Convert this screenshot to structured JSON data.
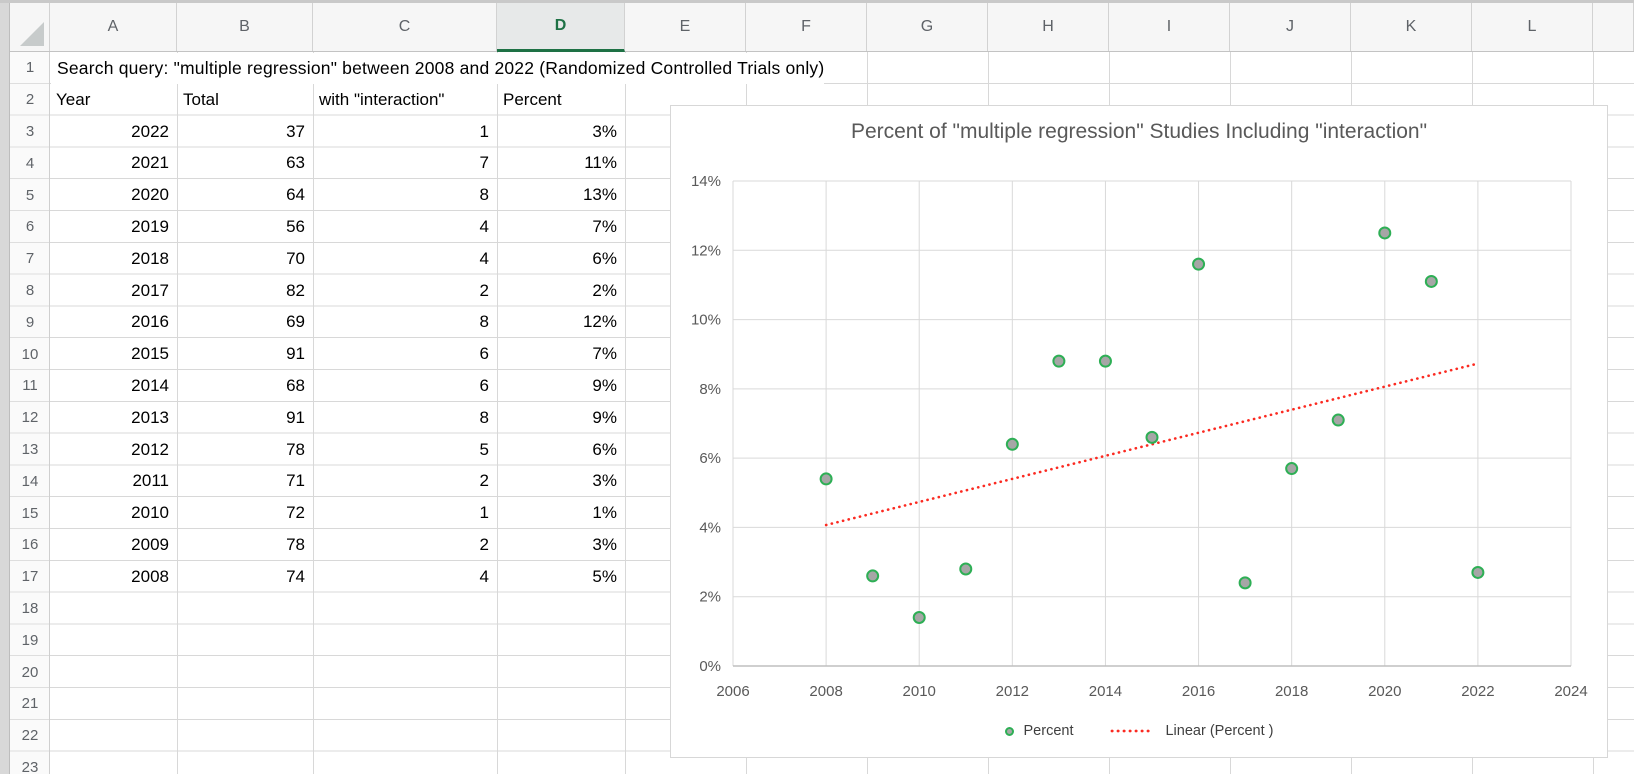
{
  "app": {
    "selected_column": "D"
  },
  "sheet": {
    "column_headers": [
      "A",
      "B",
      "C",
      "D",
      "E",
      "F",
      "G",
      "H",
      "I",
      "J",
      "K",
      "L"
    ],
    "row_count": 23,
    "title_cell": "Search query: \"multiple regression\" between 2008 and 2022 (Randomized Controlled Trials only)",
    "table": {
      "header_row": [
        "Year",
        "Total",
        "with \"interaction\"",
        "Percent"
      ],
      "rows": [
        [
          "2022",
          "37",
          "1",
          "3%"
        ],
        [
          "2021",
          "63",
          "7",
          "11%"
        ],
        [
          "2020",
          "64",
          "8",
          "13%"
        ],
        [
          "2019",
          "56",
          "4",
          "7%"
        ],
        [
          "2018",
          "70",
          "4",
          "6%"
        ],
        [
          "2017",
          "82",
          "2",
          "2%"
        ],
        [
          "2016",
          "69",
          "8",
          "12%"
        ],
        [
          "2015",
          "91",
          "6",
          "7%"
        ],
        [
          "2014",
          "68",
          "6",
          "9%"
        ],
        [
          "2013",
          "91",
          "8",
          "9%"
        ],
        [
          "2012",
          "78",
          "5",
          "6%"
        ],
        [
          "2011",
          "71",
          "2",
          "3%"
        ],
        [
          "2010",
          "72",
          "1",
          "1%"
        ],
        [
          "2009",
          "78",
          "2",
          "3%"
        ],
        [
          "2008",
          "74",
          "4",
          "5%"
        ]
      ]
    }
  },
  "chart_data": {
    "type": "scatter",
    "title": "Percent of \"multiple regression\" Studies Including \"interaction\"",
    "x": [
      2008,
      2009,
      2010,
      2011,
      2012,
      2013,
      2014,
      2015,
      2016,
      2017,
      2018,
      2019,
      2020,
      2021,
      2022
    ],
    "series": [
      {
        "name": "Percent",
        "values": [
          5.4,
          2.6,
          1.4,
          2.8,
          6.4,
          8.8,
          8.8,
          6.6,
          11.6,
          2.4,
          5.7,
          7.1,
          12.5,
          11.1,
          2.7
        ]
      }
    ],
    "trendline": {
      "name": "Linear (Percent )",
      "x1": 2008,
      "y1": 4.07,
      "x2": 2022,
      "y2": 8.73,
      "color": "#fb2a21",
      "style": "dotted"
    },
    "xlabel": "",
    "ylabel": "",
    "xlim": [
      2006,
      2024
    ],
    "ylim": [
      0,
      14
    ],
    "x_tick_labels": [
      "2006",
      "2008",
      "2010",
      "2012",
      "2014",
      "2016",
      "2018",
      "2020",
      "2022",
      "2024"
    ],
    "y_tick_labels": [
      "0%",
      "2%",
      "4%",
      "6%",
      "8%",
      "10%",
      "12%",
      "14%"
    ],
    "grid": true,
    "legend_position": "bottom",
    "marker": {
      "fill": "#a6a6a6",
      "stroke": "#2eaf55"
    },
    "colors": {
      "axis_text": "#595959",
      "gridline": "#d9d9d9",
      "axis_line": "#bfbfbf"
    }
  }
}
